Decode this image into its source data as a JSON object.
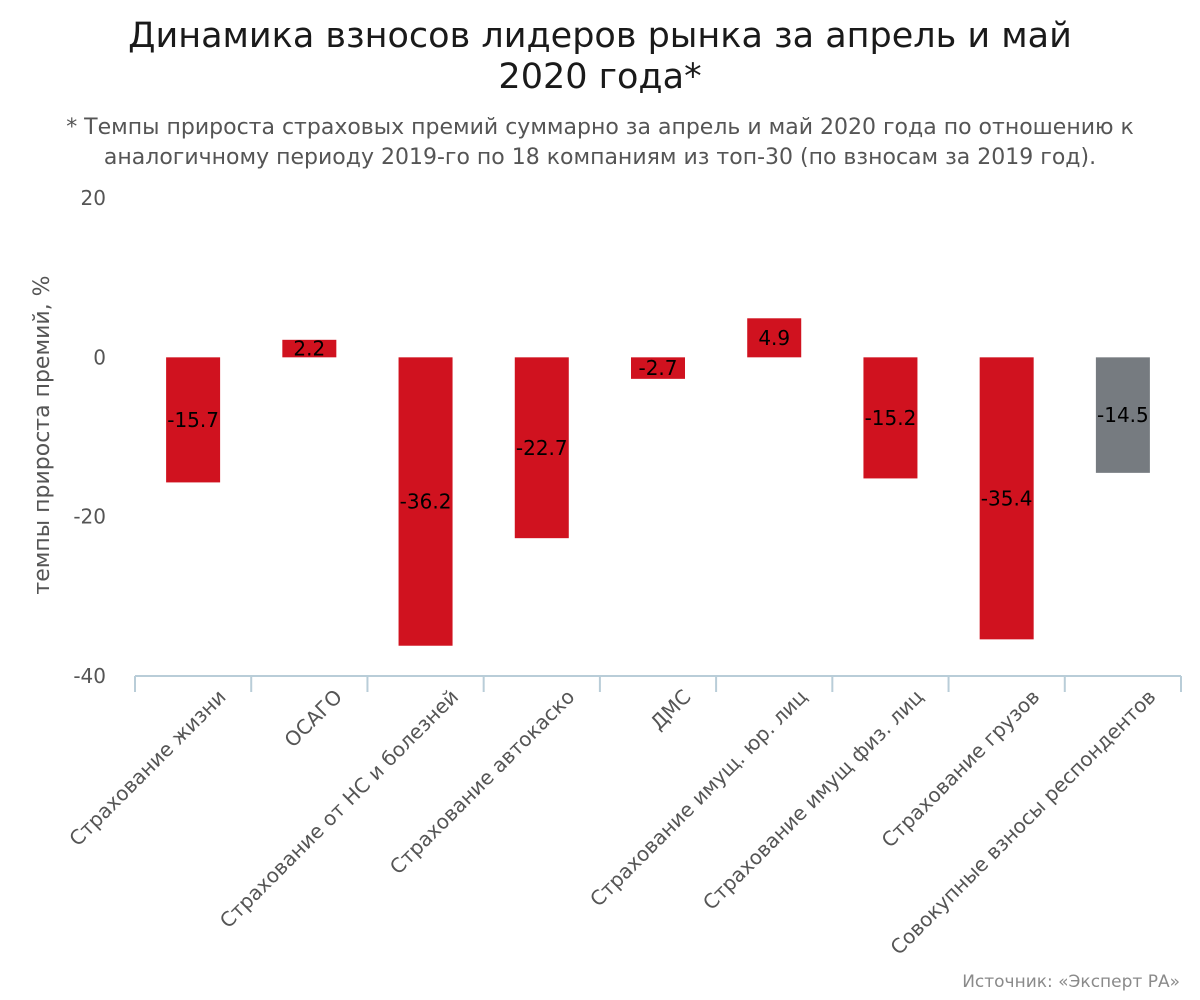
{
  "chart_data": {
    "type": "bar",
    "title": [
      "Динамика взносов лидеров рынка за апрель и май",
      "2020 года*"
    ],
    "subtitle": [
      "* Темпы прироста страховых премий суммарно за апрель и май 2020 года по отношению к",
      "аналогичному периоду 2019-го по 18 компаниям из топ-30 (по взносам за 2019 год)."
    ],
    "categories": [
      "Страхование жизни",
      "ОСАГО",
      "Страхование от НС и болезней",
      "Страхование автокаско",
      "ДМС",
      "Страхование имущ. юр. лиц",
      "Страхование имущ физ. лиц",
      "Страхование грузов",
      "Совокупные взносы респондентов"
    ],
    "values": [
      -15.7,
      2.2,
      -36.2,
      -22.7,
      -2.7,
      4.9,
      -15.2,
      -35.4,
      -14.5
    ],
    "data_labels": [
      "-15.7",
      "2.2",
      "-36.2",
      "-22.7",
      "-2.7",
      "4.9",
      "-15.2",
      "-35.4",
      "-14.5"
    ],
    "bar_colors": [
      "#d0121f",
      "#d0121f",
      "#d0121f",
      "#d0121f",
      "#d0121f",
      "#d0121f",
      "#d0121f",
      "#d0121f",
      "#767b80"
    ],
    "ylabel": "темпы прироста премий, %",
    "xlabel": "",
    "ylim": [
      -40,
      20
    ],
    "yticks": [
      20,
      0,
      -20,
      -40
    ],
    "ytick_labels": [
      "20",
      "0",
      "-20",
      "-40"
    ],
    "grid": false,
    "legend": "none"
  },
  "source": "Источник: «Эксперт РА»",
  "colors": {
    "bar": "#d0121f",
    "total_bar": "#767b80",
    "axis": "#b9cdd8"
  }
}
